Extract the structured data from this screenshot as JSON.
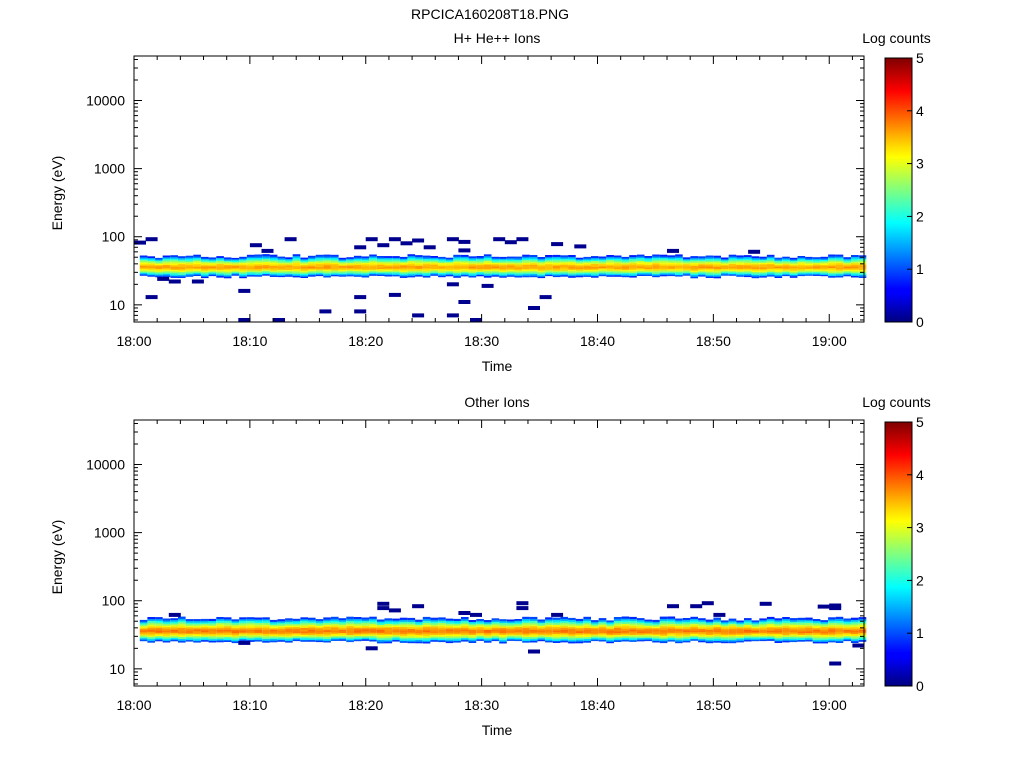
{
  "title": "RPCICA160208T18.PNG",
  "chart_data": [
    {
      "type": "heatmap",
      "title": "H+ He++ Ions",
      "xlabel": "Time",
      "ylabel": "Energy (eV)",
      "x_ticks": [
        "18:00",
        "18:10",
        "18:20",
        "18:30",
        "18:40",
        "18:50",
        "19:00"
      ],
      "y_ticks": [
        "10",
        "100",
        "1000",
        "10000"
      ],
      "y_scale": "log",
      "colorbar": {
        "label": "Log counts",
        "ticks": [
          "0",
          "1",
          "2",
          "3",
          "4",
          "5"
        ],
        "range": [
          0,
          5
        ]
      },
      "band": {
        "center_eV": 36,
        "low_eV": 26,
        "high_eV": 52,
        "peak_log_counts": 3.6
      },
      "sparse_points": [
        {
          "t": "18:00",
          "e": 82
        },
        {
          "t": "18:01",
          "e": 92
        },
        {
          "t": "18:01",
          "e": 13
        },
        {
          "t": "18:02",
          "e": 24
        },
        {
          "t": "18:03",
          "e": 22
        },
        {
          "t": "18:05",
          "e": 22
        },
        {
          "t": "18:09",
          "e": 16
        },
        {
          "t": "18:09",
          "e": 6
        },
        {
          "t": "18:10",
          "e": 75
        },
        {
          "t": "18:11",
          "e": 62
        },
        {
          "t": "18:12",
          "e": 6
        },
        {
          "t": "18:13",
          "e": 92
        },
        {
          "t": "18:16",
          "e": 8
        },
        {
          "t": "18:19",
          "e": 8
        },
        {
          "t": "18:19",
          "e": 13
        },
        {
          "t": "18:19",
          "e": 70
        },
        {
          "t": "18:20",
          "e": 92
        },
        {
          "t": "18:21",
          "e": 75
        },
        {
          "t": "18:22",
          "e": 92
        },
        {
          "t": "18:22",
          "e": 14
        },
        {
          "t": "18:23",
          "e": 80
        },
        {
          "t": "18:24",
          "e": 88
        },
        {
          "t": "18:24",
          "e": 7
        },
        {
          "t": "18:25",
          "e": 70
        },
        {
          "t": "18:27",
          "e": 92
        },
        {
          "t": "18:27",
          "e": 7
        },
        {
          "t": "18:27",
          "e": 20
        },
        {
          "t": "18:28",
          "e": 84
        },
        {
          "t": "18:28",
          "e": 11
        },
        {
          "t": "18:28",
          "e": 63
        },
        {
          "t": "18:29",
          "e": 6
        },
        {
          "t": "18:30",
          "e": 19
        },
        {
          "t": "18:31",
          "e": 92
        },
        {
          "t": "18:32",
          "e": 83
        },
        {
          "t": "18:33",
          "e": 92
        },
        {
          "t": "18:34",
          "e": 9
        },
        {
          "t": "18:35",
          "e": 13
        },
        {
          "t": "18:36",
          "e": 78
        },
        {
          "t": "18:38",
          "e": 72
        },
        {
          "t": "18:46",
          "e": 62
        },
        {
          "t": "18:53",
          "e": 60
        }
      ]
    },
    {
      "type": "heatmap",
      "title": "Other Ions",
      "xlabel": "Time",
      "ylabel": "Energy (eV)",
      "x_ticks": [
        "18:00",
        "18:10",
        "18:20",
        "18:30",
        "18:40",
        "18:50",
        "19:00"
      ],
      "y_ticks": [
        "10",
        "100",
        "1000",
        "10000"
      ],
      "y_scale": "log",
      "colorbar": {
        "label": "Log counts",
        "ticks": [
          "0",
          "1",
          "2",
          "3",
          "4",
          "5"
        ],
        "range": [
          0,
          5
        ]
      },
      "band": {
        "center_eV": 36,
        "low_eV": 25,
        "high_eV": 55,
        "peak_log_counts": 3.8
      },
      "sparse_points": [
        {
          "t": "18:03",
          "e": 62
        },
        {
          "t": "18:09",
          "e": 24
        },
        {
          "t": "18:20",
          "e": 20
        },
        {
          "t": "18:21",
          "e": 90
        },
        {
          "t": "18:21",
          "e": 78
        },
        {
          "t": "18:22",
          "e": 72
        },
        {
          "t": "18:24",
          "e": 83
        },
        {
          "t": "18:28",
          "e": 66
        },
        {
          "t": "18:29",
          "e": 62
        },
        {
          "t": "18:33",
          "e": 92
        },
        {
          "t": "18:33",
          "e": 78
        },
        {
          "t": "18:34",
          "e": 18
        },
        {
          "t": "18:36",
          "e": 62
        },
        {
          "t": "18:46",
          "e": 83
        },
        {
          "t": "18:48",
          "e": 83
        },
        {
          "t": "18:49",
          "e": 92
        },
        {
          "t": "18:50",
          "e": 62
        },
        {
          "t": "18:54",
          "e": 90
        },
        {
          "t": "18:59",
          "e": 82
        },
        {
          "t": "19:00",
          "e": 85
        },
        {
          "t": "19:00",
          "e": 78
        },
        {
          "t": "19:00",
          "e": 12
        },
        {
          "t": "19:02",
          "e": 22
        }
      ]
    }
  ]
}
